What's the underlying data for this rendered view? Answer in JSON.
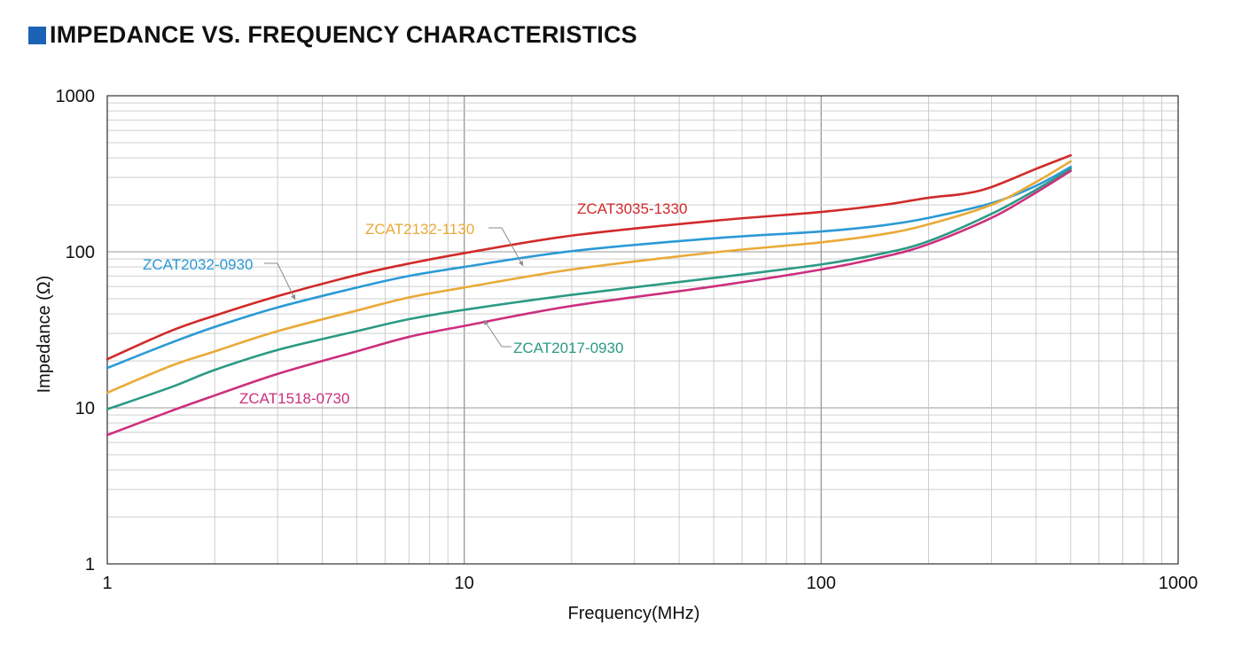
{
  "title": "IMPEDANCE VS. FREQUENCY CHARACTERISTICS",
  "colors": {
    "title_square": "#1a63b4",
    "grid": "#c8c8c8",
    "axis": "#333333"
  },
  "chart_data": {
    "type": "line",
    "xscale": "log",
    "yscale": "log",
    "xlim": [
      1,
      1000
    ],
    "ylim": [
      1,
      1000
    ],
    "xlabel": "Frequency(MHz)",
    "ylabel": "Impedance (Ω)",
    "xticks": [
      "1",
      "10",
      "100",
      "1000"
    ],
    "yticks": [
      "1",
      "10",
      "100",
      "1000"
    ],
    "grid": true,
    "series": [
      {
        "name": "ZCAT3035-1330",
        "color": "#d12a2a",
        "x": [
          1,
          1.5,
          2,
          3,
          5,
          7,
          10,
          20,
          50,
          100,
          150,
          200,
          250,
          300,
          400,
          500
        ],
        "y": [
          20.5,
          31,
          39,
          52,
          71,
          84,
          98,
          127,
          158,
          180,
          200,
          222,
          235,
          260,
          340,
          415
        ]
      },
      {
        "name": "ZCAT2032-0930",
        "color": "#2b9ad6",
        "x": [
          1,
          1.5,
          2,
          3,
          5,
          7,
          10,
          20,
          50,
          100,
          150,
          200,
          300,
          400,
          500
        ],
        "y": [
          18,
          26,
          33,
          44,
          59,
          70,
          80,
          101,
          122,
          135,
          148,
          165,
          205,
          265,
          350
        ]
      },
      {
        "name": "ZCAT2132-1130",
        "color": "#eaaa38",
        "x": [
          1,
          1.5,
          2,
          3,
          5,
          7,
          10,
          20,
          50,
          100,
          150,
          200,
          300,
          400,
          500
        ],
        "y": [
          12.5,
          18.5,
          23,
          31,
          42,
          51,
          59,
          77,
          99,
          115,
          130,
          150,
          200,
          280,
          380
        ]
      },
      {
        "name": "ZCAT2017-0930",
        "color": "#2c9a85",
        "x": [
          1,
          1.5,
          2,
          3,
          5,
          7,
          10,
          20,
          50,
          100,
          150,
          200,
          300,
          400,
          500
        ],
        "y": [
          9.8,
          13.5,
          17.5,
          23.5,
          31,
          37,
          42.5,
          53,
          68,
          83,
          98,
          117,
          175,
          250,
          340
        ]
      },
      {
        "name": "ZCAT1518-0730",
        "color": "#cc2f7e",
        "x": [
          1,
          1.5,
          2,
          3,
          5,
          7,
          10,
          20,
          50,
          100,
          150,
          200,
          300,
          400,
          500
        ],
        "y": [
          6.7,
          9.5,
          12,
          16.5,
          23,
          28.5,
          33.5,
          45,
          60,
          77,
          93,
          112,
          165,
          240,
          330
        ]
      }
    ]
  }
}
